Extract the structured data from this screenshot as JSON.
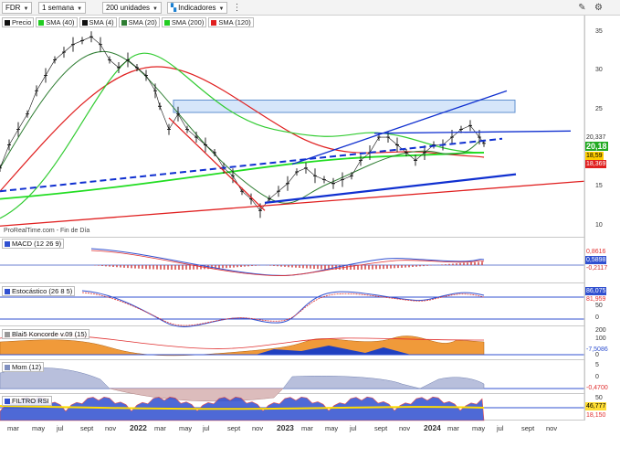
{
  "toolbar": {
    "symbol": "FDR",
    "timeframe": "1 semana",
    "units": "200 unidades",
    "indicators_label": "Indicadores"
  },
  "legend": [
    {
      "label": "Precio",
      "color": "#111111"
    },
    {
      "label": "SMA (40)",
      "color": "#22cc22"
    },
    {
      "label": "SMA (4)",
      "color": "#111111"
    },
    {
      "label": "SMA (20)",
      "color": "#2e7d32"
    },
    {
      "label": "SMA (200)",
      "color": "#22cc22"
    },
    {
      "label": "SMA (120)",
      "color": "#e02020"
    }
  ],
  "watermark": "ProRealTime.com - Fin de Día",
  "price_axis": [
    "35",
    "30",
    "25",
    "20",
    "15",
    "10"
  ],
  "price_tags": {
    "top": "20,337",
    "price": "20,18",
    "sma_a": "18,59",
    "sma_b": "18,369"
  },
  "panels": {
    "macd": {
      "label": "MACD (12 26 9)",
      "values": [
        "0,8616",
        "0,5898",
        "-0,2117"
      ],
      "colors": [
        "#e03030",
        "#3050d0",
        "#cc3030"
      ]
    },
    "stoch": {
      "label": "Estocástico (26 8 5)",
      "values": [
        "86,075",
        "81,959"
      ],
      "ticks": [
        "50",
        "0"
      ],
      "colors": [
        "#3050d0",
        "#e03030"
      ]
    },
    "blai5": {
      "label": "Blai5 Koncorde v.09 (15)",
      "values": [
        "-7,5086"
      ],
      "ticks": [
        "200",
        "100",
        "0"
      ],
      "colors": [
        "#3050d0"
      ]
    },
    "mom": {
      "label": "Mom (12)",
      "values": [
        "-0,4700"
      ],
      "ticks": [
        "5",
        "0"
      ],
      "colors": [
        "#e03030"
      ]
    },
    "rsi": {
      "label": "FILTRO RSI",
      "values": [
        "46,777",
        "18,150"
      ],
      "ticks": [
        "50"
      ],
      "colors": [
        "#ddbb00",
        "#e03030"
      ]
    }
  },
  "time_axis": [
    {
      "label": "mar",
      "year": false
    },
    {
      "label": "may",
      "year": false
    },
    {
      "label": "jul",
      "year": false
    },
    {
      "label": "sept",
      "year": false
    },
    {
      "label": "nov",
      "year": false
    },
    {
      "label": "2022",
      "year": true
    },
    {
      "label": "mar",
      "year": false
    },
    {
      "label": "may",
      "year": false
    },
    {
      "label": "jul",
      "year": false
    },
    {
      "label": "sept",
      "year": false
    },
    {
      "label": "nov",
      "year": false
    },
    {
      "label": "2023",
      "year": true
    },
    {
      "label": "mar",
      "year": false
    },
    {
      "label": "may",
      "year": false
    },
    {
      "label": "jul",
      "year": false
    },
    {
      "label": "sept",
      "year": false
    },
    {
      "label": "nov",
      "year": false
    },
    {
      "label": "2024",
      "year": true
    },
    {
      "label": "mar",
      "year": false
    },
    {
      "label": "may",
      "year": false
    },
    {
      "label": "jul",
      "year": false
    },
    {
      "label": "sept",
      "year": false
    },
    {
      "label": "nov",
      "year": false
    }
  ],
  "colors": {
    "price": "#111111",
    "sma40": "#22cc22",
    "sma20": "#2e7d32",
    "sma120": "#e02020",
    "trend_blue": "#1030d0",
    "trend_red": "#e02020",
    "zone_fill": "#d6e6fa"
  }
}
